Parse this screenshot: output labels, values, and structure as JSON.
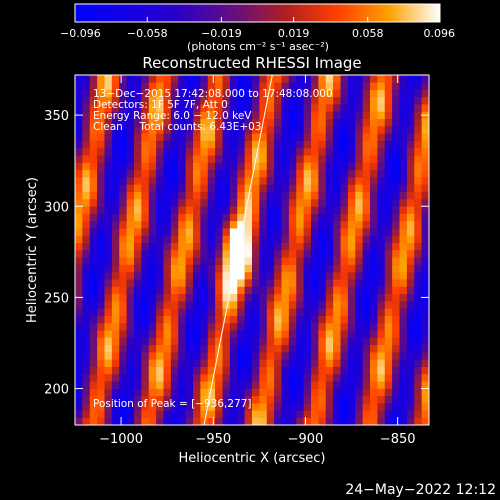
{
  "chart_data": {
    "type": "heatmap",
    "title": "Reconstructed RHESSI Image",
    "xlabel": "Heliocentric X (arcsec)",
    "ylabel": "Heliocentric Y (arcsec)",
    "xlim": [
      -1025,
      -833
    ],
    "ylim": [
      180,
      372
    ],
    "x_ticks": [
      -1000,
      -950,
      -900,
      -850
    ],
    "x_tick_labels": [
      "−1000",
      "−950",
      "−900",
      "−850"
    ],
    "y_ticks": [
      200,
      250,
      300,
      350
    ],
    "y_tick_labels": [
      "200",
      "250",
      "300",
      "350"
    ],
    "colorbar": {
      "range": [
        -0.096,
        0.096
      ],
      "ticks": [
        -0.096,
        -0.058,
        -0.019,
        0.019,
        0.058,
        0.096
      ],
      "tick_labels": [
        "−0.096",
        "−0.058",
        "−0.019",
        "0.019",
        "0.058",
        "0.096"
      ],
      "unit": "(photons cm⁻² s⁻¹ asec⁻²)"
    },
    "annotations": [
      "13−Dec−2015 17:42:08.000 to 17:48:08.000",
      "Detectors: 1F 5F 7F, Att 0",
      "Energy Range: 6.0 − 12.0 keV",
      "Clean     Total counts: 6.43E+03"
    ],
    "peak_label": "Position of Peak = [−936,277]",
    "peak": [
      -936,
      277
    ],
    "limb_line": {
      "x": [
        -956,
        -918
      ],
      "y": [
        175,
        372
      ]
    },
    "pattern": {
      "description": "tilted fringe stripes",
      "fringe_spacing_arcsec": 30,
      "slope_x_per_y": 0.2,
      "amplitude": 0.096
    },
    "colors": {
      "background": "#000000",
      "text": "#ffffff"
    }
  },
  "timestamp": "24−May−2022 12:12"
}
